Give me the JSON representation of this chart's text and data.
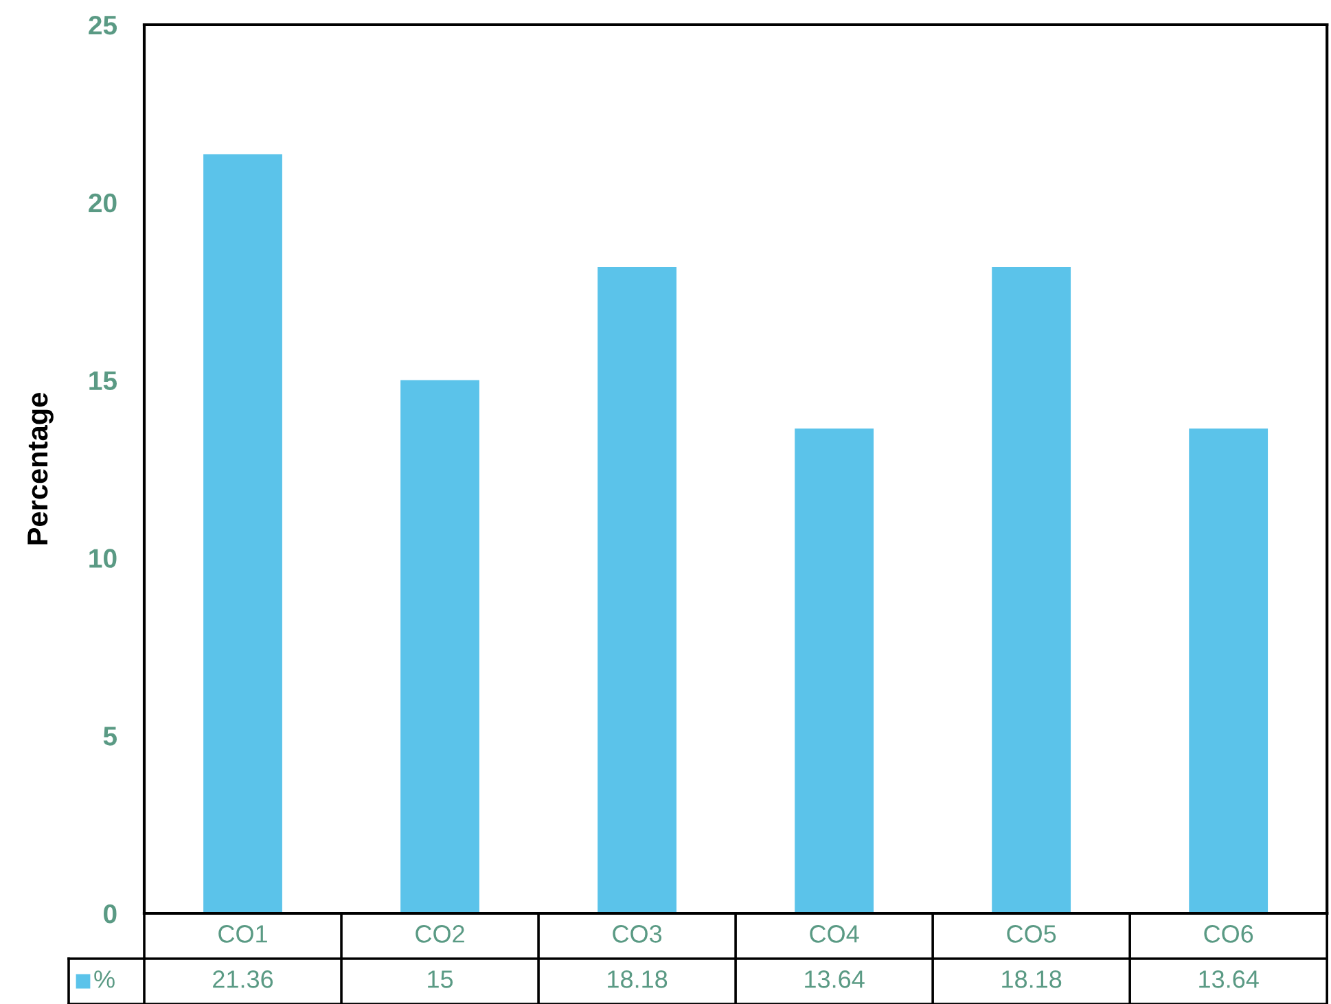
{
  "chart_data": {
    "type": "bar",
    "ylabel": "Percentage",
    "categories": [
      "CO1",
      "CO2",
      "CO3",
      "CO4",
      "CO5",
      "CO6"
    ],
    "series": [
      {
        "name": "%",
        "color": "#5bc3ea",
        "values": [
          21.36,
          15,
          18.18,
          13.64,
          18.18,
          13.64
        ]
      }
    ],
    "ylim": [
      0,
      25
    ],
    "yticks": [
      0,
      5,
      10,
      15,
      20,
      25
    ],
    "grid": false,
    "legend": "bottom",
    "data_labels": true
  }
}
